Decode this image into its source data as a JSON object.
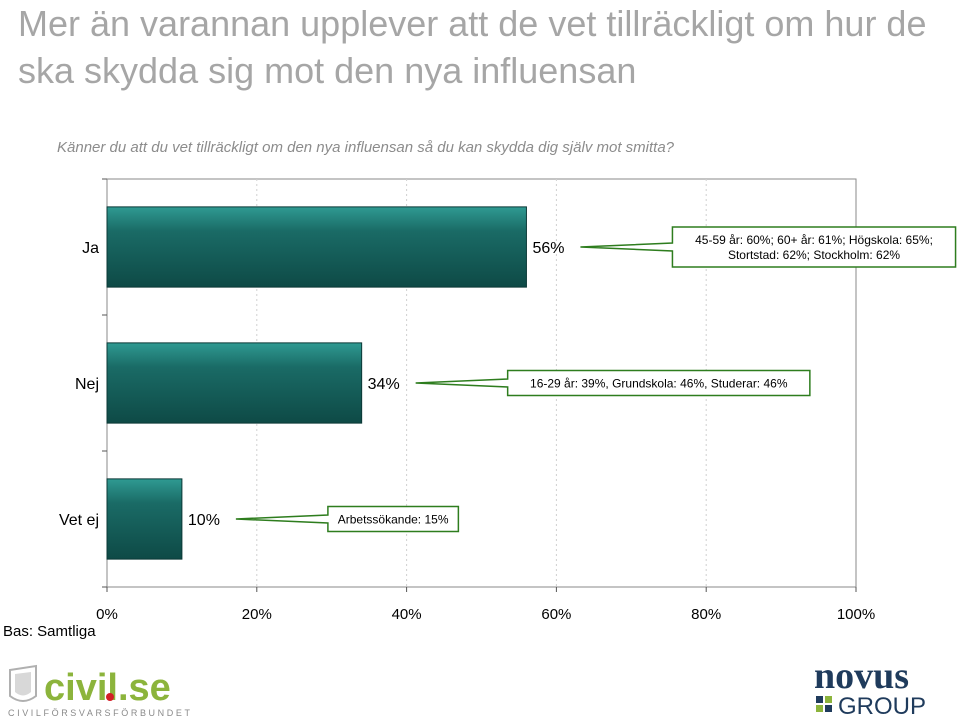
{
  "title": "Mer än varannan upplever att de vet tillräckligt om hur de ska skydda sig mot den nya influensan",
  "subtitle": "Känner du att du vet tillräckligt om den nya influensan så du kan skydda dig själv mot smitta?",
  "base_label": "Bas: Samtliga",
  "logos": {
    "left": {
      "text": "civil.se",
      "tagline": "CIVILFÖRSVARSFÖRBUNDET",
      "text_color": "#8cb43c",
      "dot_color": "#d31f26"
    },
    "right": {
      "line1": "novus",
      "line2": "GROUP",
      "color": "#1f3b5c",
      "accent": "#8cb43c"
    }
  },
  "colors": {
    "bar_fill": "#1a6b66",
    "bar_highlight": "#2f9a92",
    "callout_border": "#2e7d1e",
    "plot_border": "#8a8a8a"
  },
  "chart_data": {
    "type": "bar",
    "orientation": "horizontal",
    "categories": [
      "Ja",
      "Nej",
      "Vet ej"
    ],
    "values": [
      56,
      34,
      10
    ],
    "value_labels": [
      "56%",
      "34%",
      "10%"
    ],
    "annotations": [
      [
        "45-59 år: 60%; 60+ år: 61%; Högskola: 65%;",
        "Stortstad: 62%; Stockholm: 62%"
      ],
      [
        "16-29 år: 39%, Grundskola: 46%, Studerar: 46%"
      ],
      [
        "Arbetssökande: 15%"
      ]
    ],
    "xlim": [
      0,
      100
    ],
    "xticks": [
      "0%",
      "20%",
      "40%",
      "60%",
      "80%",
      "100%"
    ],
    "grid": true
  }
}
